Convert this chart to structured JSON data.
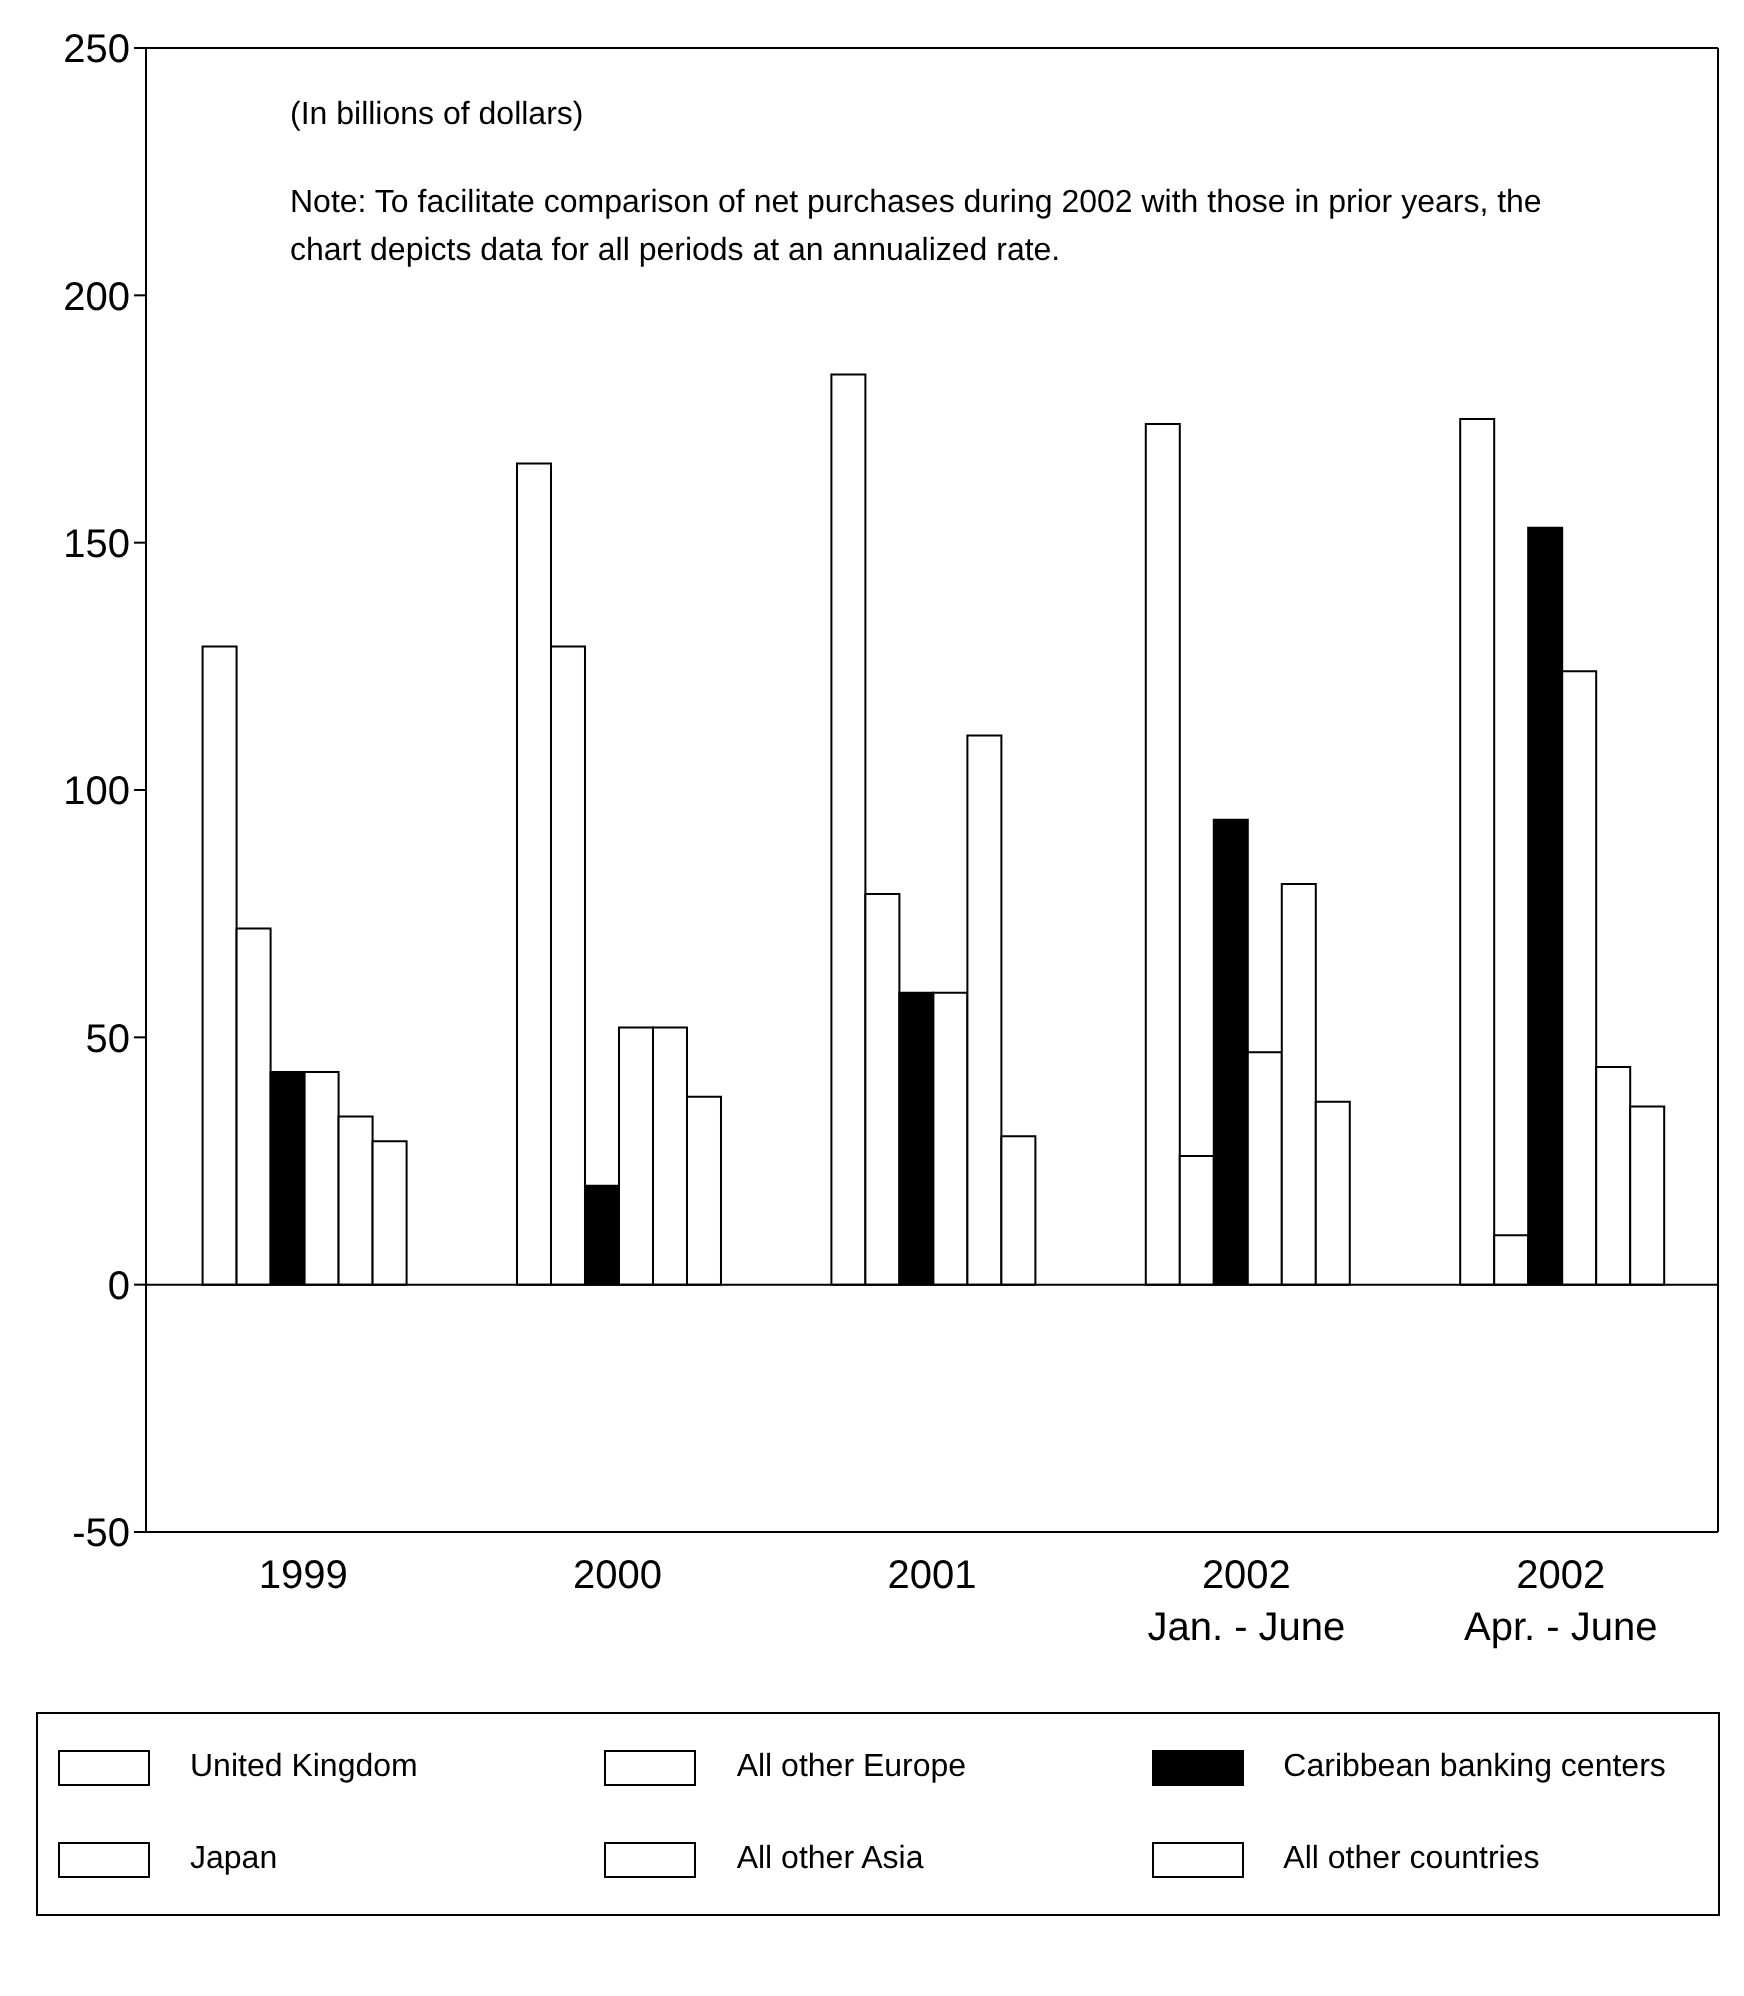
{
  "chart_data": {
    "type": "bar",
    "categories": [
      "1999",
      "2000",
      "2001",
      "2002\nJan. - June",
      "2002\nApr. - June"
    ],
    "series": [
      {
        "name": "United Kingdom",
        "color": "#ffffff",
        "values": [
          129,
          166,
          184,
          174,
          175
        ]
      },
      {
        "name": "All other Europe",
        "color": "#ffffff",
        "values": [
          72,
          129,
          79,
          26,
          10
        ]
      },
      {
        "name": "Caribbean banking centers",
        "color": "#000000",
        "values": [
          43,
          20,
          59,
          94,
          153
        ]
      },
      {
        "name": "Japan",
        "color": "#ffffff",
        "values": [
          43,
          52,
          59,
          47,
          124
        ]
      },
      {
        "name": "All other Asia",
        "color": "#ffffff",
        "values": [
          34,
          52,
          111,
          81,
          44
        ]
      },
      {
        "name": "All other countries",
        "color": "#ffffff",
        "values": [
          29,
          38,
          30,
          37,
          36
        ]
      }
    ],
    "ylim": [
      -50,
      250
    ],
    "yticks": [
      -50,
      0,
      50,
      100,
      150,
      200,
      250
    ],
    "ref_lines": [
      {
        "axis": "y",
        "value": 0
      }
    ],
    "annotations": [
      "(In billions of dollars)",
      "Note: To facilitate comparison of net purchases during 2002 with those in prior years, the chart depicts data for all periods at an annualized rate."
    ],
    "grid": false,
    "legend": "bottom"
  }
}
